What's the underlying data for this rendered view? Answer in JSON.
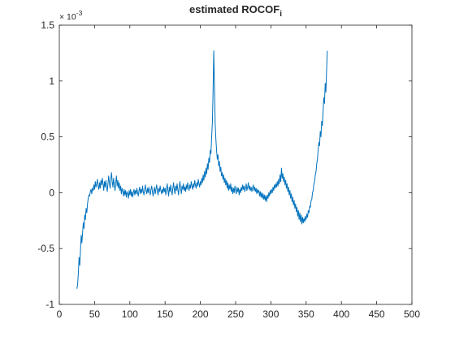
{
  "chart_data": {
    "type": "line",
    "title": "estimated ROCOF",
    "title_subscript": "i",
    "xlabel": "",
    "ylabel": "",
    "xlim": [
      0,
      500
    ],
    "ylim": [
      -1,
      1.5
    ],
    "y_exponent_label": "× 10",
    "y_exponent_power": "-3",
    "grid": false,
    "xticks": [
      0,
      50,
      100,
      150,
      200,
      250,
      300,
      350,
      400,
      450,
      500
    ],
    "xtick_labels": [
      "0",
      "50",
      "100",
      "150",
      "200",
      "250",
      "300",
      "350",
      "400",
      "450",
      "500"
    ],
    "yticks": [
      -1,
      -0.5,
      0,
      0.5,
      1,
      1.5
    ],
    "ytick_labels": [
      "-1",
      "-0.5",
      "0",
      "0.5",
      "1",
      "1.5"
    ],
    "line_color": "#0072BD",
    "series": [
      {
        "x_start": 25,
        "x_step": 1,
        "values": [
          -0.86,
          -0.82,
          -0.72,
          -0.58,
          -0.65,
          -0.52,
          -0.38,
          -0.45,
          -0.36,
          -0.27,
          -0.32,
          -0.2,
          -0.24,
          -0.14,
          -0.18,
          -0.1,
          -0.05,
          -0.02,
          -0.03,
          0.01,
          0.03,
          -0.01,
          0.04,
          0.02,
          0.07,
          0.03,
          0.1,
          0.05,
          0.08,
          0.12,
          0.06,
          0.03,
          0.09,
          0.04,
          0.11,
          0.07,
          0.13,
          0.08,
          0.02,
          0.1,
          0.05,
          0.11,
          0.06,
          0.01,
          0.08,
          0.15,
          0.09,
          0.04,
          0.12,
          0.18,
          0.1,
          0.05,
          0.13,
          0.07,
          0.02,
          0.09,
          0.15,
          0.06,
          0.11,
          0.04,
          0.09,
          0.02,
          0.06,
          -0.01,
          0.04,
          0.01,
          -0.03,
          0.03,
          -0.02,
          0.02,
          -0.04,
          0.01,
          -0.01,
          -0.05,
          0.02,
          -0.02,
          0.03,
          -0.03,
          0.01,
          -0.04,
          0.0,
          0.03,
          -0.02,
          0.02,
          -0.01,
          0.04,
          0.0,
          -0.03,
          0.02,
          0.05,
          -0.01,
          0.03,
          0.0,
          0.06,
          0.01,
          -0.02,
          0.03,
          0.07,
          0.02,
          -0.01,
          0.04,
          0.0,
          0.05,
          0.01,
          -0.02,
          0.03,
          0.06,
          0.01,
          -0.03,
          0.02,
          0.05,
          -0.01,
          0.03,
          0.07,
          0.02,
          -0.02,
          0.04,
          0.01,
          0.06,
          0.02,
          -0.01,
          0.03,
          0.0,
          0.05,
          0.01,
          0.04,
          -0.02,
          0.03,
          0.08,
          0.02,
          -0.03,
          0.05,
          0.01,
          0.07,
          0.02,
          -0.02,
          0.04,
          0.09,
          0.03,
          -0.01,
          0.06,
          0.02,
          0.08,
          0.03,
          -0.02,
          0.05,
          0.1,
          0.04,
          -0.01,
          0.06,
          0.03,
          0.08,
          0.02,
          0.05,
          0.01,
          0.07,
          0.03,
          0.09,
          0.05,
          0.02,
          0.07,
          0.04,
          0.1,
          0.06,
          0.03,
          0.08,
          0.05,
          0.11,
          0.07,
          0.04,
          0.09,
          0.06,
          0.12,
          0.08,
          0.05,
          0.1,
          0.07,
          0.13,
          0.09,
          0.16,
          0.11,
          0.19,
          0.14,
          0.22,
          0.17,
          0.26,
          0.21,
          0.31,
          0.27,
          0.38,
          0.35,
          0.5,
          0.62,
          0.9,
          1.27,
          0.95,
          0.62,
          0.48,
          0.38,
          0.3,
          0.34,
          0.24,
          0.28,
          0.19,
          0.23,
          0.15,
          0.18,
          0.12,
          0.16,
          0.09,
          0.13,
          0.07,
          0.11,
          0.04,
          0.09,
          0.02,
          0.07,
          0.03,
          0.08,
          0.01,
          0.05,
          -0.01,
          0.04,
          0.0,
          0.06,
          0.02,
          -0.01,
          0.05,
          0.01,
          0.04,
          -0.02,
          0.03,
          0.0,
          0.05,
          0.02,
          0.07,
          0.03,
          0.06,
          0.01,
          0.04,
          0.08,
          0.02,
          0.05,
          0.09,
          0.03,
          0.06,
          0.02,
          0.05,
          0.01,
          0.04,
          0.07,
          0.02,
          0.05,
          0.01,
          0.04,
          -0.01,
          0.03,
          0.0,
          0.02,
          -0.03,
          0.01,
          -0.04,
          0.0,
          -0.05,
          -0.01,
          -0.06,
          -0.02,
          -0.07,
          -0.03,
          -0.08,
          -0.02,
          -0.05,
          0.0,
          -0.03,
          0.02,
          -0.01,
          0.03,
          0.0,
          0.05,
          0.02,
          0.07,
          0.04,
          0.08,
          0.05,
          0.1,
          0.06,
          0.12,
          0.08,
          0.16,
          0.1,
          0.22,
          0.13,
          0.17,
          0.1,
          0.14,
          0.07,
          0.11,
          0.04,
          0.08,
          0.01,
          0.05,
          -0.02,
          0.02,
          -0.05,
          -0.01,
          -0.08,
          -0.04,
          -0.11,
          -0.07,
          -0.14,
          -0.1,
          -0.17,
          -0.13,
          -0.21,
          -0.16,
          -0.24,
          -0.18,
          -0.26,
          -0.2,
          -0.28,
          -0.22,
          -0.27,
          -0.23,
          -0.26,
          -0.21,
          -0.24,
          -0.19,
          -0.22,
          -0.16,
          -0.18,
          -0.12,
          -0.13,
          -0.07,
          -0.06,
          0.0,
          0.02,
          0.08,
          0.1,
          0.16,
          0.19,
          0.26,
          0.3,
          0.38,
          0.45,
          0.42,
          0.55,
          0.5,
          0.64,
          0.6,
          0.72,
          0.85,
          0.8,
          0.98,
          0.9,
          1.1,
          1.27
        ]
      }
    ]
  }
}
